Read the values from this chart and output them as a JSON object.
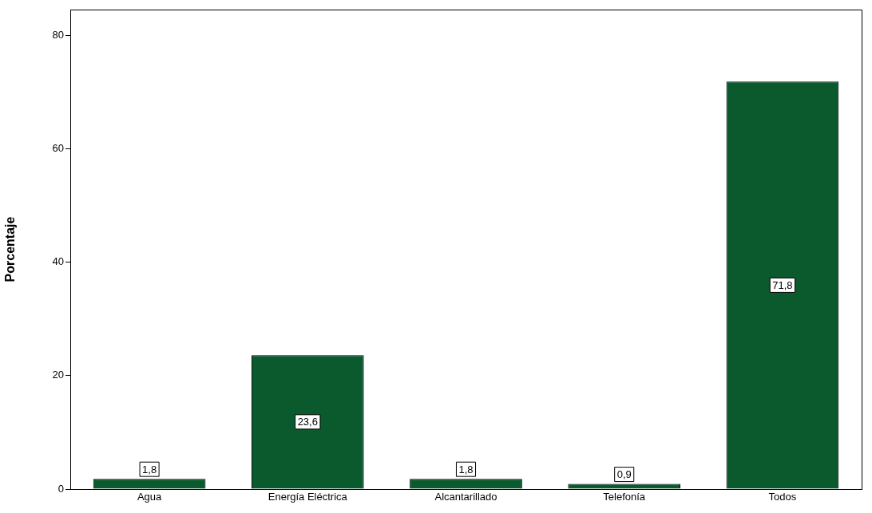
{
  "chart_data": {
    "type": "bar",
    "ylabel": "Porcentaje",
    "categories": [
      "Agua",
      "Energía Eléctrica",
      "Alcantarillado",
      "Telefonía",
      "Todos"
    ],
    "values": [
      1.8,
      23.6,
      1.8,
      0.9,
      71.8
    ],
    "value_labels": [
      "1,8",
      "23,6",
      "1,8",
      "0,9",
      "71,8"
    ],
    "color": "#0b5a2e",
    "ylim": [
      0,
      84.5
    ],
    "yticks": [
      0,
      20,
      40,
      60,
      80
    ],
    "grid": false,
    "legend": false
  }
}
